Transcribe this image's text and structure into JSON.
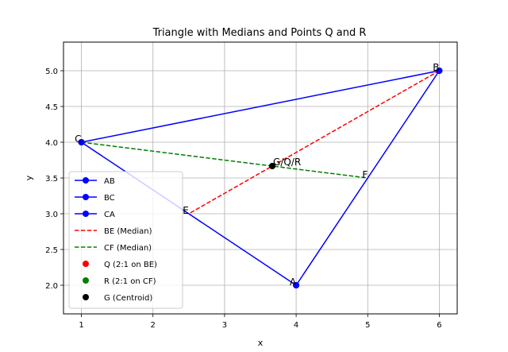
{
  "chart_data": {
    "type": "line",
    "title": "Triangle with Medians and Points Q and R",
    "xlabel": "x",
    "ylabel": "y",
    "xlim": [
      0.75,
      6.25
    ],
    "ylim": [
      1.6,
      5.4
    ],
    "xticks": [
      1,
      2,
      3,
      4,
      5,
      6
    ],
    "yticks": [
      2.0,
      2.5,
      3.0,
      3.5,
      4.0,
      4.5,
      5.0
    ],
    "grid": true,
    "legend_position": "lower-left",
    "vertices": [
      {
        "label": "A",
        "x": 4,
        "y": 2
      },
      {
        "label": "B",
        "x": 6,
        "y": 5
      },
      {
        "label": "C",
        "x": 1,
        "y": 4
      },
      {
        "label": "E",
        "x": 2.5,
        "y": 3
      },
      {
        "label": "F",
        "x": 5,
        "y": 3.5
      }
    ],
    "point_label": "G/Q/R",
    "series": [
      {
        "name": "AB",
        "style": "solid-marker",
        "color": "#0000ff",
        "points": [
          [
            4,
            2
          ],
          [
            6,
            5
          ]
        ]
      },
      {
        "name": "BC",
        "style": "solid-marker",
        "color": "#0000ff",
        "points": [
          [
            6,
            5
          ],
          [
            1,
            4
          ]
        ]
      },
      {
        "name": "CA",
        "style": "solid-marker",
        "color": "#0000ff",
        "points": [
          [
            1,
            4
          ],
          [
            4,
            2
          ]
        ]
      },
      {
        "name": "BE (Median)",
        "style": "dashed",
        "color": "#ff0000",
        "points": [
          [
            6,
            5
          ],
          [
            2.5,
            3
          ]
        ]
      },
      {
        "name": "CF (Median)",
        "style": "dashed",
        "color": "#008000",
        "points": [
          [
            1,
            4
          ],
          [
            5,
            3.5
          ]
        ]
      },
      {
        "name": "Q (2:1 on BE)",
        "style": "point",
        "color": "#ff0000",
        "points": [
          [
            3.667,
            3.667
          ]
        ]
      },
      {
        "name": "R (2:1 on CF)",
        "style": "point",
        "color": "#008000",
        "points": [
          [
            3.667,
            3.667
          ]
        ]
      },
      {
        "name": "G (Centroid)",
        "style": "point",
        "color": "#000000",
        "points": [
          [
            3.667,
            3.667
          ]
        ]
      }
    ]
  }
}
